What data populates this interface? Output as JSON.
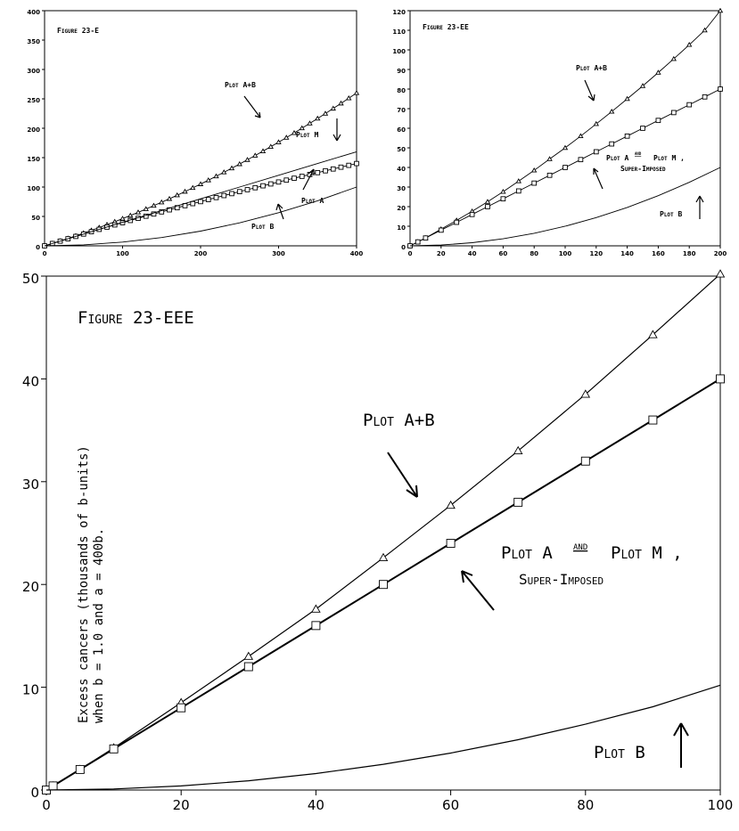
{
  "chart_data": [
    {
      "type": "line",
      "title": "Figure 23-E",
      "xlabel": "",
      "ylabel": "",
      "xlim": [
        0,
        400
      ],
      "ylim": [
        0,
        400
      ],
      "xticks": [
        0,
        100,
        200,
        300,
        400
      ],
      "yticks": [
        0,
        50,
        100,
        150,
        200,
        250,
        300,
        350,
        400
      ],
      "grid": false,
      "legend": "none",
      "series": [
        {
          "name": "Plot A+B",
          "marker": "triangle",
          "x": [
            0,
            10,
            20,
            30,
            40,
            50,
            60,
            70,
            80,
            90,
            100,
            110,
            120,
            130,
            140,
            150,
            160,
            170,
            180,
            190,
            200,
            210,
            220,
            230,
            240,
            250,
            260,
            270,
            280,
            290,
            300,
            310,
            320,
            330,
            340,
            350,
            360,
            370,
            380,
            390,
            400
          ],
          "values": [
            0,
            4.1,
            8.3,
            12.6,
            17,
            21.6,
            26.3,
            31.1,
            36,
            41.1,
            46.3,
            51.6,
            57,
            62.6,
            68.3,
            74.1,
            80,
            86.1,
            92.3,
            98.6,
            105,
            111.6,
            118.3,
            125.1,
            132,
            139.1,
            146.3,
            153.6,
            161,
            168.6,
            176.3,
            184.1,
            192,
            200.1,
            208.3,
            216.6,
            225,
            233.6,
            242.3,
            251.1,
            260
          ]
        },
        {
          "name": "Plot M",
          "marker": "square",
          "x": [
            0,
            10,
            20,
            30,
            40,
            50,
            60,
            70,
            80,
            90,
            100,
            110,
            120,
            130,
            140,
            150,
            160,
            170,
            180,
            190,
            200,
            210,
            220,
            230,
            240,
            250,
            260,
            270,
            280,
            290,
            300,
            310,
            320,
            330,
            340,
            350,
            360,
            370,
            380,
            390,
            400
          ],
          "values": [
            0,
            4,
            8,
            12,
            16,
            20,
            24,
            28,
            31.8,
            35.6,
            39.3,
            43.1,
            46.8,
            50.4,
            54.1,
            57.7,
            61.2,
            64.8,
            68.3,
            71.8,
            75.2,
            78.7,
            82.1,
            85.5,
            88.8,
            92.2,
            95.5,
            98.8,
            102.1,
            105.3,
            108.6,
            111.8,
            115,
            118.2,
            121.3,
            124.5,
            127.6,
            130.7,
            133.8,
            136.9,
            140
          ]
        },
        {
          "name": "Plot A",
          "marker": "none",
          "x": [
            0,
            50,
            100,
            150,
            200,
            250,
            300,
            350,
            400
          ],
          "values": [
            0,
            20,
            40,
            60,
            80,
            100,
            120,
            140,
            160
          ]
        },
        {
          "name": "Plot B",
          "marker": "none",
          "x": [
            0,
            50,
            100,
            150,
            200,
            250,
            300,
            350,
            400
          ],
          "values": [
            0,
            1.6,
            6.3,
            14.1,
            25,
            39.1,
            56.3,
            76.6,
            100
          ]
        }
      ],
      "annotations": [
        "Figure 23-E",
        "Plot A+B",
        "Plot M",
        "Plot A",
        "Plot B"
      ]
    },
    {
      "type": "line",
      "title": "Figure 23-EE",
      "xlabel": "",
      "ylabel": "",
      "xlim": [
        0,
        200
      ],
      "ylim": [
        0,
        120
      ],
      "xticks": [
        0,
        20,
        40,
        60,
        80,
        100,
        120,
        140,
        160,
        180,
        200
      ],
      "yticks": [
        0,
        10,
        20,
        30,
        40,
        50,
        60,
        70,
        80,
        90,
        100,
        110,
        120
      ],
      "grid": false,
      "legend": "none",
      "series": [
        {
          "name": "Plot A+B",
          "marker": "triangle",
          "x": [
            0,
            5,
            10,
            20,
            30,
            40,
            50,
            60,
            70,
            80,
            90,
            100,
            110,
            120,
            130,
            140,
            150,
            160,
            170,
            180,
            190,
            200
          ],
          "values": [
            0,
            2,
            4,
            8.5,
            13,
            17.6,
            22.5,
            27.6,
            33,
            38.5,
            44.3,
            50,
            56,
            62.2,
            68.5,
            75,
            81.6,
            88.4,
            95.4,
            102.6,
            110,
            120
          ]
        },
        {
          "name": "Plot A and Plot M, Super-Imposed",
          "marker": "square",
          "x": [
            0,
            5,
            10,
            20,
            30,
            40,
            50,
            60,
            70,
            80,
            90,
            100,
            110,
            120,
            130,
            140,
            150,
            160,
            170,
            180,
            190,
            200
          ],
          "values": [
            0,
            2,
            4,
            8,
            12,
            16,
            20,
            24,
            28,
            32,
            36,
            40,
            44,
            48,
            52,
            56,
            60,
            64,
            68,
            72,
            76,
            80
          ]
        },
        {
          "name": "Plot B",
          "marker": "none",
          "x": [
            0,
            20,
            40,
            60,
            80,
            100,
            120,
            140,
            160,
            180,
            200
          ],
          "values": [
            0,
            0.4,
            1.6,
            3.6,
            6.4,
            10,
            14.4,
            19.6,
            25.6,
            32.4,
            40
          ]
        }
      ],
      "annotations": [
        "Figure 23-EE",
        "Plot A+B",
        "Plot A and Plot M, Super-Imposed",
        "Plot B"
      ]
    },
    {
      "type": "line",
      "title": "Figure 23-EEE",
      "xlabel": "",
      "ylabel": "Excess cancers (thousands of b-units) when b = 1.0 and a = 400b.",
      "xlim": [
        0,
        100
      ],
      "ylim": [
        0,
        50
      ],
      "xticks": [
        0,
        20,
        40,
        60,
        80,
        100
      ],
      "yticks": [
        0,
        10,
        20,
        30,
        40,
        50
      ],
      "grid": false,
      "legend": "none",
      "series": [
        {
          "name": "Plot A+B",
          "marker": "triangle",
          "x": [
            0,
            1,
            5,
            10,
            20,
            30,
            40,
            50,
            60,
            70,
            80,
            90,
            100
          ],
          "values": [
            0,
            0.4,
            2,
            4.1,
            8.5,
            13,
            17.6,
            22.6,
            27.7,
            33,
            38.5,
            44.3,
            50.2
          ]
        },
        {
          "name": "Plot A and Plot M, Super-Imposed",
          "marker": "square",
          "x": [
            0,
            1,
            5,
            10,
            20,
            30,
            40,
            50,
            60,
            70,
            80,
            90,
            100
          ],
          "values": [
            0,
            0.4,
            2,
            4,
            8,
            12,
            16,
            20,
            24,
            28,
            32,
            36,
            40
          ]
        },
        {
          "name": "Plot B",
          "marker": "none",
          "x": [
            0,
            10,
            20,
            30,
            40,
            50,
            60,
            70,
            80,
            90,
            100
          ],
          "values": [
            0,
            0.1,
            0.4,
            0.9,
            1.6,
            2.5,
            3.6,
            4.9,
            6.4,
            8.1,
            10.2
          ]
        }
      ],
      "annotations": [
        "Figure 23-EEE",
        "Plot A+B",
        "Plot A and Plot M, Super-Imposed",
        "Plot B"
      ]
    }
  ],
  "labels": {
    "e": {
      "title": "Figure 23-E",
      "ab": "Plot A+B",
      "m": "Plot M",
      "a": "Plot A",
      "b": "Plot B"
    },
    "ee": {
      "title": "Figure 23-EE",
      "ab": "Plot A+B",
      "am_line1": "Plot A",
      "am_and": "and",
      "am_line1b": "Plot M ,",
      "am_line2": "Super-Imposed",
      "b": "Plot B"
    },
    "eee": {
      "title": "Figure 23-EEE",
      "ab": "Plot A+B",
      "am_line1": "Plot A",
      "am_and": "and",
      "am_line1b": "Plot M ,",
      "am_line2": "Super-Imposed",
      "b": "Plot B",
      "ylabel_line1": "Excess cancers (thousands of b-units)",
      "ylabel_line2": "when b = 1.0 and a = 400b."
    }
  }
}
